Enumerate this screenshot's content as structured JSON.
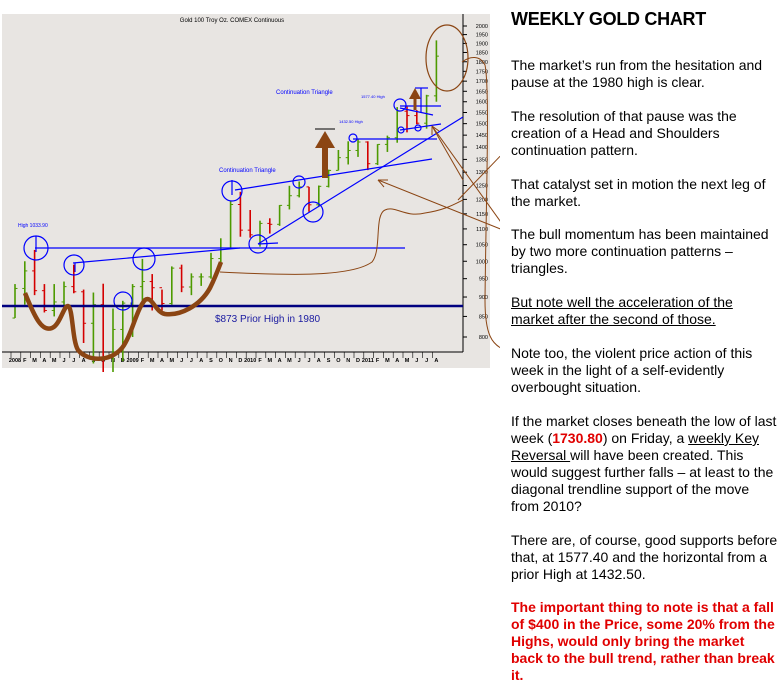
{
  "chart_data": {
    "type": "ohlc-bar",
    "title": "Gold 100 Troy Oz. COMEX Continuous",
    "scale": "log",
    "ylim": [
      800,
      2000
    ],
    "yticks": [
      2000,
      1950,
      1900,
      1850,
      1800,
      1750,
      1700,
      1650,
      1600,
      1550,
      1500,
      1450,
      1400,
      1350,
      1300,
      1250,
      1200,
      1150,
      1100,
      1050,
      1000,
      950,
      900,
      850,
      800
    ],
    "grid": false,
    "x_labels": [
      "2008",
      "F",
      "M",
      "A",
      "M",
      "J",
      "J",
      "A",
      "S",
      "O",
      "N",
      "D",
      "2009",
      "F",
      "M",
      "A",
      "M",
      "J",
      "J",
      "A",
      "S",
      "O",
      "N",
      "D",
      "2010",
      "F",
      "M",
      "A",
      "M",
      "J",
      "J",
      "A",
      "S",
      "O",
      "N",
      "D",
      "2011",
      "F",
      "M",
      "A",
      "M",
      "J",
      "J",
      "A"
    ],
    "bars": {
      "period": "monthly (from Jan 2008)",
      "high": [
        935,
        1000,
        1033.9,
        935,
        935,
        942,
        990,
        920,
        912,
        936,
        870,
        890,
        935,
        1007,
        963,
        920,
        985,
        990,
        965,
        965,
        1025,
        1070,
        1195,
        1227,
        1163,
        1127,
        1135,
        1180,
        1249,
        1265,
        1245,
        1250,
        1310,
        1388,
        1424,
        1432.5,
        1424,
        1412,
        1448,
        1575,
        1577.4,
        1561,
        1633,
        1917
      ],
      "low": [
        846,
        880,
        905,
        860,
        850,
        860,
        910,
        786,
        740,
        681,
        705,
        745,
        800,
        890,
        865,
        865,
        880,
        913,
        905,
        930,
        950,
        992,
        1040,
        1075,
        1072,
        1044,
        1085,
        1110,
        1165,
        1207,
        1157,
        1175,
        1243,
        1307,
        1330,
        1360,
        1308,
        1328,
        1380,
        1418,
        1462,
        1497,
        1478,
        1600
      ],
      "close": [
        923,
        972,
        917,
        865,
        887,
        928,
        914,
        833,
        880,
        718,
        818,
        884,
        928,
        942,
        925,
        883,
        980,
        927,
        955,
        955,
        1008,
        1040,
        1182,
        1096,
        1081,
        1118,
        1115,
        1179,
        1213,
        1245,
        1181,
        1247,
        1307,
        1357,
        1386,
        1421,
        1333,
        1411,
        1439,
        1556,
        1536,
        1502,
        1628,
        1830
      ],
      "up_color": "#4d9a00",
      "down_color": "#d40000"
    },
    "annotations": {
      "triangle_label_1": "Continuation Triangle",
      "triangle_label_2": "Continuation Triangle",
      "high_1577": "1577.40 High",
      "high_1432": "1432.50 High",
      "high_1033": "High 1033.90",
      "prior_high": "$873  Prior High in 1980",
      "prior_high_value": 873,
      "levels": [
        1033.9,
        1432.5,
        1577.4
      ],
      "line_color": "#0000ff",
      "prior_high_color": "#000080",
      "pattern_color": "#8b4513"
    }
  },
  "commentary": {
    "title": "WEEKLY GOLD CHART",
    "p1": "The market’s run from the hesitation and pause at the 1980 high is clear.",
    "p2": "The resolution of that pause was the creation of a Head and Shoulders continuation pattern.",
    "p3": "That catalyst  set in motion the next leg of the market.",
    "p4": "The bull momentum  has been maintained by two more continuation patterns – triangles.",
    "p5": "But note well the acceleration  of the market after the second of those.",
    "p6": "Note too, the violent price action  of this week in the light of a  self-evidently overbought situation.",
    "p7a": "If the market closes beneath the low of last week (",
    "p7_value": "1730.80",
    "p7b": ") on Friday, a ",
    "p7_link": "weekly Key Reversal ",
    "p7c": "will have  been created. This would suggest further falls – at least to the diagonal trendline support of the move from 2010?",
    "p8": "There are, of course, good supports before that, at 1577.40 and the horizontal from a prior High at 1432.50.",
    "p9": "The important thing to note is that a fall of $400 in the Price,  some 20% from the Highs, would only bring the market back to the bull trend, rather than break it."
  }
}
